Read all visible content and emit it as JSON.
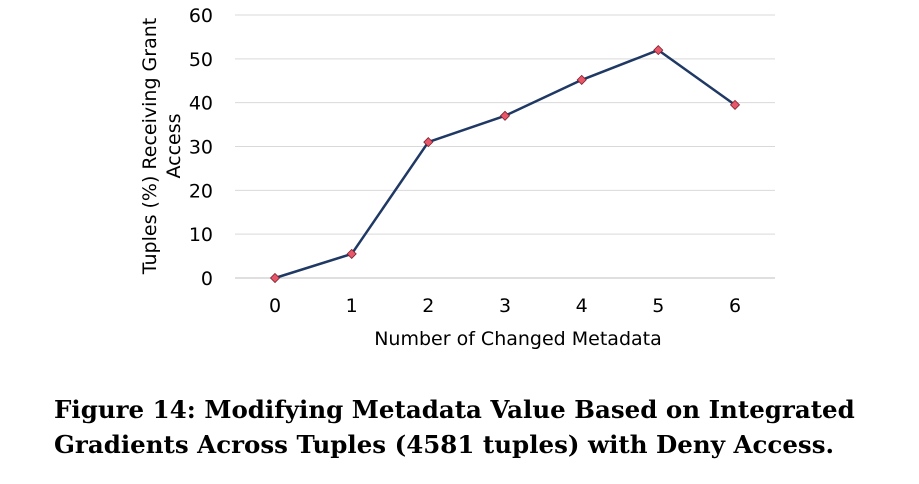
{
  "chart_data": {
    "type": "line",
    "x": [
      0,
      1,
      2,
      3,
      4,
      5,
      6
    ],
    "categories": [
      "0",
      "1",
      "2",
      "3",
      "4",
      "5",
      "6"
    ],
    "series": [
      {
        "values": [
          0,
          5.5,
          31,
          37,
          45.2,
          52,
          39.5
        ]
      }
    ],
    "xlabel": "Number of Changed Metadata",
    "ylabel_line1": "Tuples (%) Receiving Grant",
    "ylabel_line2": "Access",
    "ylim": [
      0,
      60
    ],
    "yticks": [
      0,
      10,
      20,
      30,
      40,
      50,
      60
    ],
    "grid": true,
    "legend": "none",
    "line_color": "#1f3864",
    "marker_color": "#e8566a",
    "marker_shape": "diamond"
  },
  "caption": {
    "line1": "Figure 14: Modifying Metadata Value Based on Integrated",
    "line2": "Gradients Across Tuples (4581 tuples) with Deny Access."
  }
}
